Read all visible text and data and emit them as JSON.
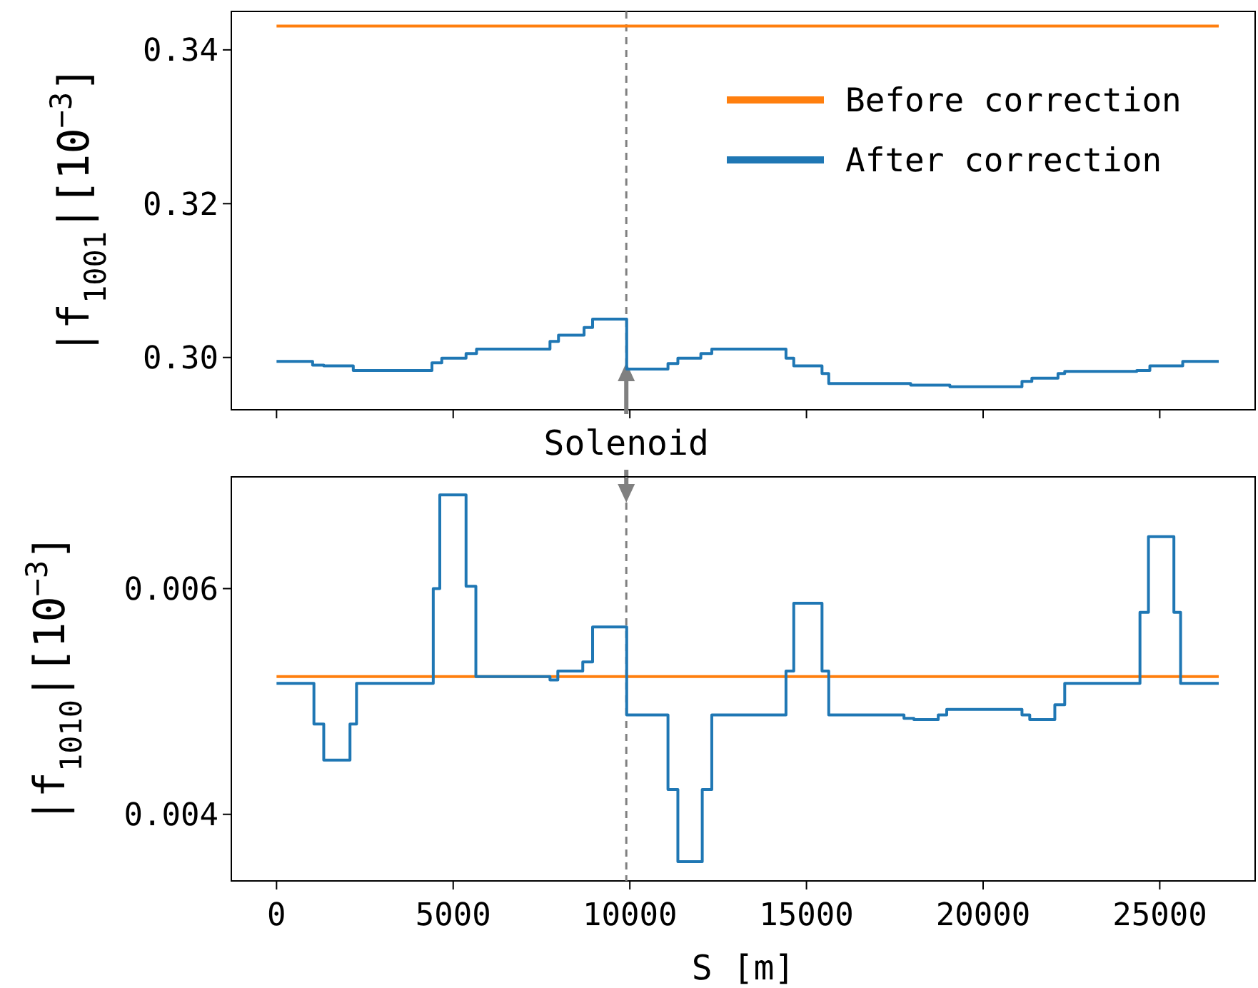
{
  "chart_data": [
    {
      "type": "line",
      "ylabel": "|f$_{1001}$|[10$^{−3}$]",
      "xlim": [
        -1280,
        27700
      ],
      "xticks": [
        0,
        5000,
        10000,
        15000,
        20000,
        25000
      ],
      "ylim": [
        0.2932,
        0.345
      ],
      "yticks": [
        {
          "value": 0.3,
          "label": "0.30"
        },
        {
          "value": 0.32,
          "label": "0.32"
        },
        {
          "value": 0.34,
          "label": "0.34"
        }
      ],
      "tick_labels": "y",
      "legend": "top right",
      "grid": false,
      "ref_lines": [
        {
          "axis": "x",
          "value": 9900,
          "label": "Solenoid",
          "color": "#808080",
          "line_style": "dashed"
        }
      ],
      "series": [
        {
          "name": "Before correction",
          "color": "#ff7f0e",
          "x": [
            0,
            26670
          ],
          "values": [
            0.3431,
            0.3431
          ]
        },
        {
          "name": "After correction",
          "color": "#1f77b4",
          "type": "step",
          "x": [
            0,
            1021,
            1336,
            2172,
            4399,
            4677,
            5364,
            5661,
            7740,
            7981,
            8705,
            8946,
            9911,
            11080,
            11360,
            12010,
            12320,
            14420,
            14640,
            15440,
            15630,
            17950,
            19060,
            21100,
            21380,
            22120,
            22310,
            24350,
            24720,
            25650,
            26670
          ],
          "values": [
            0.2995,
            0.299,
            0.2989,
            0.2983,
            0.2993,
            0.2999,
            0.3005,
            0.3011,
            0.3021,
            0.3029,
            0.3039,
            0.305,
            0.2985,
            0.2992,
            0.2999,
            0.3005,
            0.3011,
            0.2999,
            0.2989,
            0.2979,
            0.2966,
            0.2964,
            0.2962,
            0.2969,
            0.2973,
            0.2979,
            0.2982,
            0.2983,
            0.2989,
            0.2995,
            0.2995
          ]
        }
      ]
    },
    {
      "type": "line",
      "ylabel": "|f$_{1010}$|[10$^{−3}$]",
      "xlabel": "S [m]",
      "xlim": [
        -1280,
        27700
      ],
      "xticks": [
        0,
        5000,
        10000,
        15000,
        20000,
        25000
      ],
      "ylim": [
        0.00341,
        0.00699
      ],
      "yticks": [
        0.004,
        0.006
      ],
      "grid": false,
      "ref_lines": [
        {
          "axis": "x",
          "value": 9900,
          "color": "#808080",
          "line_style": "dashed"
        }
      ],
      "series": [
        {
          "color": "#ff7f0e",
          "x": [
            0,
            26670
          ],
          "values": [
            0.00522,
            0.00522
          ]
        },
        {
          "color": "#1f77b4",
          "type": "step",
          "x": [
            0,
            1058,
            1336,
            2079,
            2264,
            4436,
            4621,
            5364,
            5642,
            7740,
            7962,
            8668,
            8946,
            9911,
            11080,
            11360,
            12050,
            12320,
            14420,
            14640,
            15440,
            15630,
            17760,
            18040,
            18730,
            18970,
            21100,
            21320,
            22030,
            22310,
            24440,
            24680,
            25400,
            25590,
            26670
          ],
          "values": [
            0.00516,
            0.0048,
            0.00448,
            0.0048,
            0.00516,
            0.006,
            0.00683,
            0.00602,
            0.00522,
            0.00519,
            0.00527,
            0.00535,
            0.00566,
            0.00488,
            0.00422,
            0.00358,
            0.00422,
            0.00488,
            0.00527,
            0.00587,
            0.00527,
            0.00488,
            0.00485,
            0.00484,
            0.00488,
            0.00493,
            0.00488,
            0.00484,
            0.00497,
            0.00516,
            0.00579,
            0.00646,
            0.00579,
            0.00516,
            0.00516
          ]
        }
      ]
    }
  ]
}
